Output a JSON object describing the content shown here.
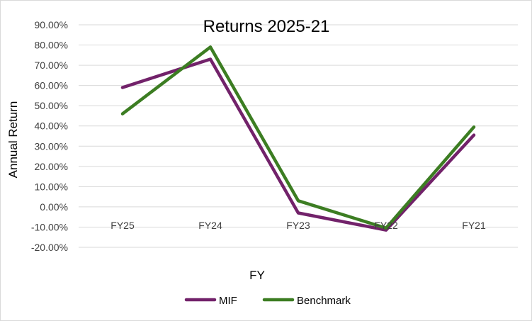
{
  "chart_data": {
    "type": "line",
    "title": "Returns 2025-21",
    "xlabel": "FY",
    "ylabel": "Annual Return",
    "categories": [
      "FY25",
      "FY24",
      "FY23",
      "FY22",
      "FY21"
    ],
    "series": [
      {
        "name": "MIF",
        "color": "#72226a",
        "values": [
          0.59,
          0.73,
          -0.03,
          -0.115,
          0.355
        ]
      },
      {
        "name": "Benchmark",
        "color": "#3c7d22",
        "values": [
          0.46,
          0.79,
          0.03,
          -0.105,
          0.395
        ]
      }
    ],
    "ylim": [
      -0.2,
      0.9
    ],
    "yticks": [
      0.9,
      0.8,
      0.7,
      0.6,
      0.5,
      0.4,
      0.3,
      0.2,
      0.1,
      0.0,
      -0.1,
      -0.2
    ],
    "ytick_labels": [
      "90.00%",
      "80.00%",
      "70.00%",
      "60.00%",
      "50.00%",
      "40.00%",
      "30.00%",
      "20.00%",
      "10.00%",
      "0.00%",
      "-10.00%",
      "-20.00%"
    ],
    "grid": true,
    "legend_position": "bottom",
    "gridline_color": "#d9d9d9"
  }
}
